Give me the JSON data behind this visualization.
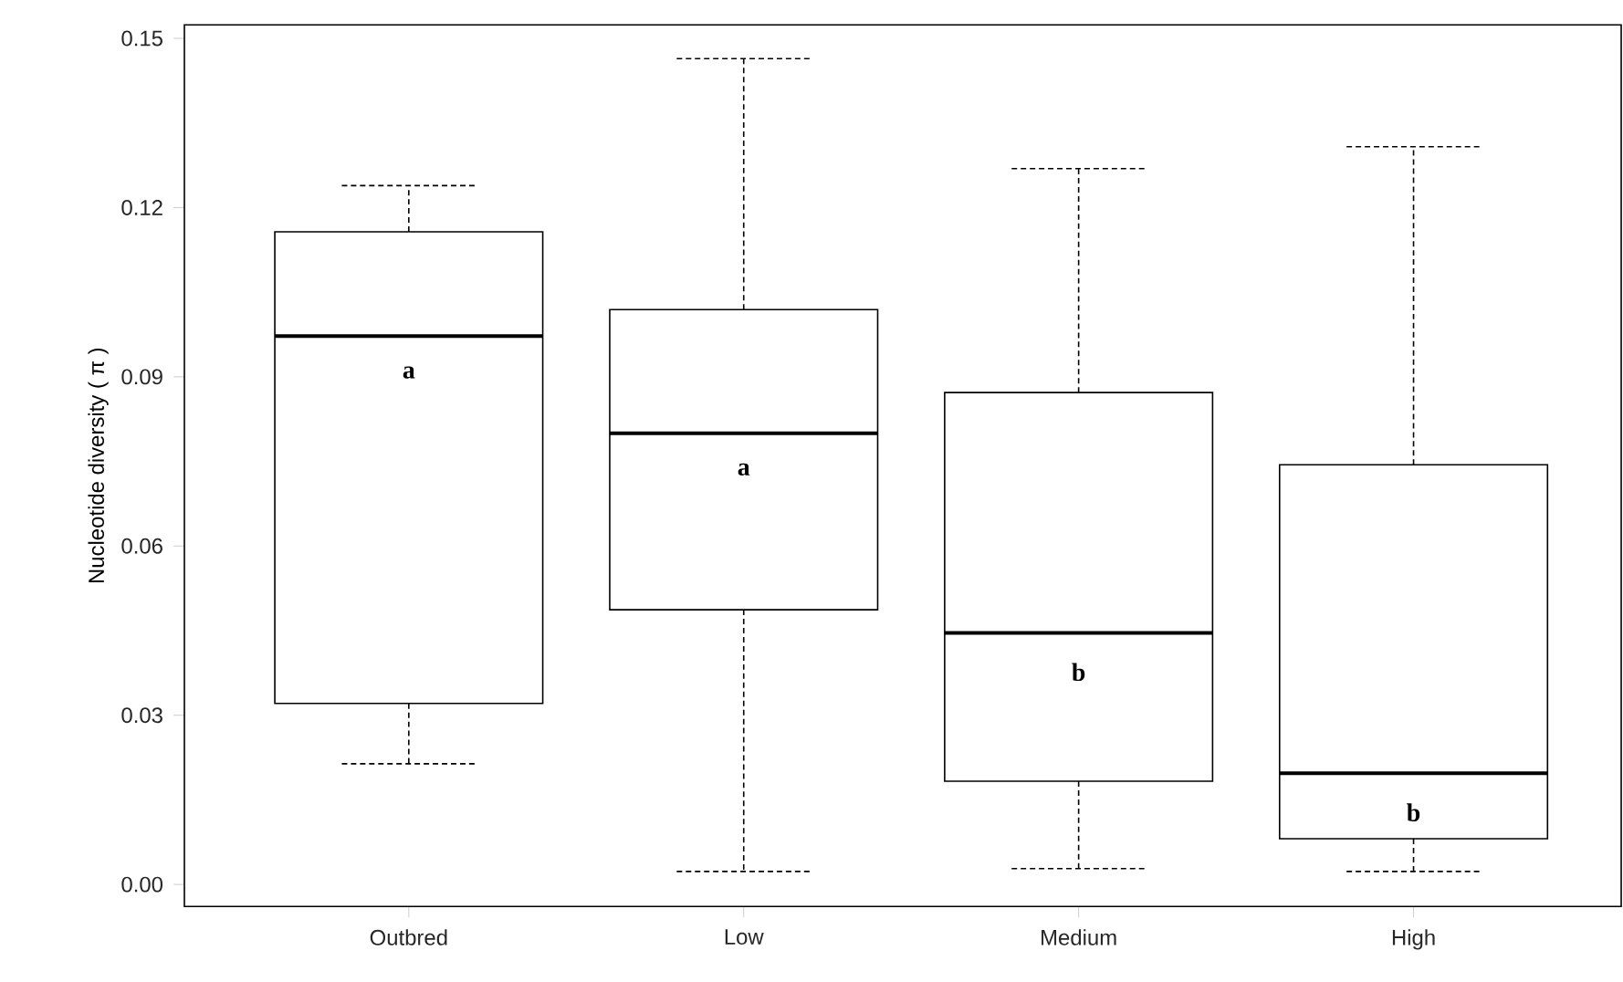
{
  "chart_data": {
    "type": "box",
    "ylabel": "Nucleotide diversity ( π )",
    "categories": [
      "Outbred",
      "Low",
      "Medium",
      "High"
    ],
    "boxes": [
      {
        "low": 0.0214,
        "q1": 0.0321,
        "median": 0.0972,
        "q3": 0.1157,
        "high": 0.1239
      },
      {
        "low": 0.0023,
        "q1": 0.0487,
        "median": 0.08,
        "q3": 0.1019,
        "high": 0.1464
      },
      {
        "low": 0.0028,
        "q1": 0.0183,
        "median": 0.0446,
        "q3": 0.0872,
        "high": 0.1269
      },
      {
        "low": 0.0023,
        "q1": 0.0081,
        "median": 0.0197,
        "q3": 0.0744,
        "high": 0.1308
      }
    ],
    "ylim": [
      -0.0039,
      0.1524
    ],
    "yticks": [
      {
        "value": 0,
        "label": "0.00"
      },
      0.03,
      0.06,
      0.09,
      0.12,
      0.15
    ],
    "grid": false,
    "line_style": "dashed",
    "annotations": [
      "a",
      "a",
      "b",
      "b"
    ]
  }
}
